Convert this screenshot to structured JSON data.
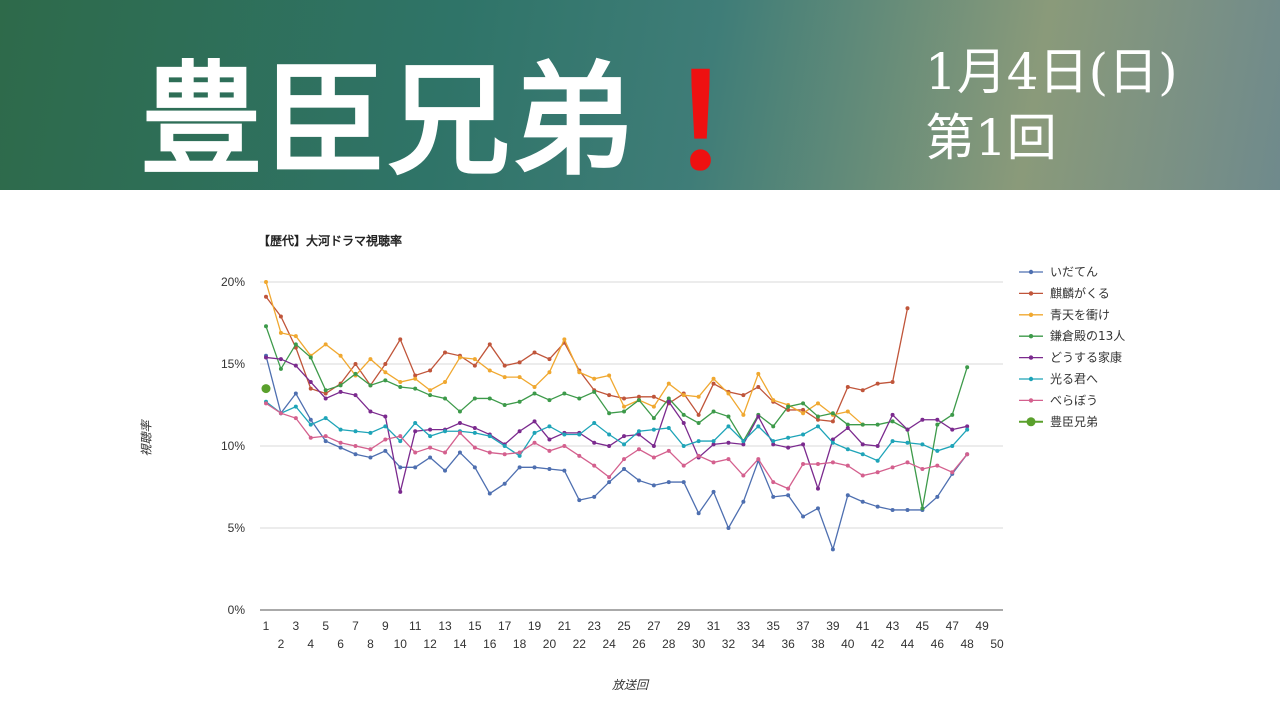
{
  "header": {
    "title": "豊臣兄弟",
    "exclaim": "！",
    "date": "1月4日(日)",
    "episode": "第1回"
  },
  "chart_data": {
    "type": "line",
    "title": "【歴代】大河ドラマ視聴率",
    "xlabel": "放送回",
    "ylabel": "視聴率",
    "xlim": [
      1,
      50
    ],
    "ylim": [
      0,
      20
    ],
    "yticks": [
      "0%",
      "5%",
      "10%",
      "15%",
      "20%"
    ],
    "ytick_values": [
      0,
      5,
      10,
      15,
      20
    ],
    "legend_position": "right",
    "grid": true,
    "series": [
      {
        "name": "いだてん",
        "color": "#4e6fb0",
        "values": [
          15.5,
          12,
          13.2,
          11.6,
          10.3,
          9.9,
          9.5,
          9.3,
          9.7,
          8.7,
          8.7,
          9.3,
          8.5,
          9.6,
          8.7,
          7.1,
          7.7,
          8.7,
          8.7,
          8.6,
          8.5,
          6.7,
          6.9,
          7.8,
          8.6,
          7.9,
          7.6,
          7.8,
          7.8,
          5.9,
          7.2,
          5,
          6.6,
          9.1,
          6.9,
          7,
          5.7,
          6.2,
          3.7,
          7,
          6.6,
          6.3,
          6.1,
          6.1,
          6.1,
          6.9,
          8.3,
          9.5
        ]
      },
      {
        "name": "麒麟がくる",
        "color": "#c0553a",
        "values": [
          19.1,
          17.9,
          16,
          13.5,
          13.2,
          13.8,
          15,
          13.7,
          15,
          16.5,
          14.3,
          14.6,
          15.7,
          15.5,
          14.9,
          16.2,
          14.9,
          15.1,
          15.7,
          15.3,
          16.3,
          14.6,
          13.4,
          13.1,
          12.9,
          13,
          13,
          12.6,
          13.2,
          11.9,
          13.8,
          13.3,
          13.1,
          13.6,
          12.7,
          12.2,
          12.2,
          11.6,
          11.5,
          13.6,
          13.4,
          13.8,
          13.9,
          18.4
        ]
      },
      {
        "name": "青天を衝け",
        "color": "#f0a830",
        "values": [
          20,
          16.9,
          16.7,
          15.5,
          16.2,
          15.5,
          14.3,
          15.3,
          14.5,
          13.9,
          14.1,
          13.4,
          13.9,
          15.4,
          15.3,
          14.6,
          14.2,
          14.2,
          13.6,
          14.5,
          16.5,
          14.5,
          14.1,
          14.3,
          12.4,
          12.8,
          12.4,
          13.8,
          13.1,
          13,
          14.1,
          13.2,
          11.9,
          14.4,
          12.8,
          12.5,
          12,
          12.6,
          11.9,
          12.1,
          11.3
        ]
      },
      {
        "name": "鎌倉殿の13人",
        "color": "#3d9a4a",
        "values": [
          17.3,
          14.7,
          16.2,
          15.4,
          13.4,
          13.7,
          14.4,
          13.7,
          14,
          13.6,
          13.5,
          13.1,
          12.9,
          12.1,
          12.9,
          12.9,
          12.5,
          12.7,
          13.2,
          12.8,
          13.2,
          12.9,
          13.3,
          12,
          12.1,
          12.8,
          11.7,
          12.9,
          11.9,
          11.4,
          12.1,
          11.8,
          10.3,
          11.9,
          11.2,
          12.4,
          12.6,
          11.8,
          12,
          11.3,
          11.3,
          11.3,
          11.5,
          11,
          6.2,
          11.3,
          11.9,
          14.8
        ]
      },
      {
        "name": "どうする家康",
        "color": "#7b2a8e",
        "values": [
          15.4,
          15.3,
          14.9,
          13.9,
          12.9,
          13.3,
          13.1,
          12.1,
          11.8,
          7.2,
          10.9,
          11,
          11,
          11.4,
          11.1,
          10.7,
          10.1,
          10.9,
          11.5,
          10.4,
          10.8,
          10.8,
          10.2,
          10,
          10.6,
          10.7,
          10,
          12.7,
          11.4,
          9.3,
          10.1,
          10.2,
          10.1,
          11.8,
          10.1,
          9.9,
          10.1,
          7.4,
          10.4,
          11.1,
          10.1,
          10,
          11.9,
          11,
          11.6,
          11.6,
          11,
          11.2
        ]
      },
      {
        "name": "光る君へ",
        "color": "#1ea4b8",
        "values": [
          12.7,
          12,
          12.4,
          11.3,
          11.7,
          11,
          10.9,
          10.8,
          11.2,
          10.3,
          11.4,
          10.6,
          10.9,
          10.9,
          10.8,
          10.6,
          10,
          9.4,
          10.8,
          11.2,
          10.7,
          10.7,
          11.4,
          10.7,
          10.1,
          10.9,
          11,
          11.1,
          10,
          10.3,
          10.3,
          11.2,
          10.3,
          11.2,
          10.3,
          10.5,
          10.7,
          11.2,
          10.2,
          9.8,
          9.5,
          9.1,
          10.3,
          10.2,
          10.1,
          9.7,
          10,
          11
        ]
      },
      {
        "name": "べらぼう",
        "color": "#d4608e",
        "values": [
          12.6,
          12,
          11.7,
          10.5,
          10.6,
          10.2,
          10,
          9.8,
          10.4,
          10.6,
          9.6,
          9.9,
          9.6,
          10.8,
          9.9,
          9.6,
          9.5,
          9.6,
          10.2,
          9.7,
          10,
          9.4,
          8.8,
          8.1,
          9.2,
          9.8,
          9.3,
          9.7,
          8.8,
          9.4,
          9,
          9.2,
          8.2,
          9.2,
          7.8,
          7.4,
          8.9,
          8.9,
          9,
          8.8,
          8.2,
          8.4,
          8.7,
          9,
          8.6,
          8.8,
          8.4,
          9.5
        ]
      },
      {
        "name": "豊臣兄弟",
        "color": "#5aa02c",
        "values": [
          13.5
        ]
      }
    ]
  }
}
